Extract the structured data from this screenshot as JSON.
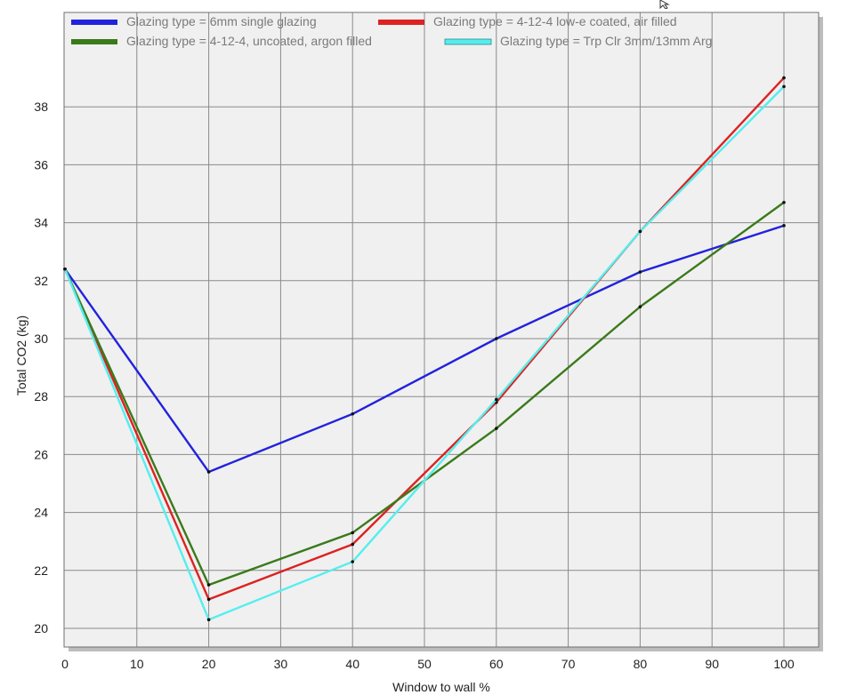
{
  "chart_data": {
    "type": "line",
    "title": "",
    "xlabel": "Window to wall %",
    "ylabel": "Total CO2 (kg)",
    "xlim": [
      0,
      100
    ],
    "ylim": [
      19.5,
      40
    ],
    "xticks": [
      0,
      10,
      20,
      30,
      40,
      50,
      60,
      70,
      80,
      90,
      100
    ],
    "yticks": [
      20,
      22,
      24,
      26,
      28,
      30,
      32,
      34,
      36,
      38
    ],
    "grid": true,
    "legend_position": "top",
    "x": [
      0,
      20,
      40,
      60,
      80,
      100
    ],
    "series": [
      {
        "name": "Glazing type = 6mm single glazing",
        "color": "#2222dd",
        "values": [
          32.4,
          25.4,
          27.4,
          30.0,
          32.3,
          33.9
        ]
      },
      {
        "name": "Glazing type = 4-12-4 low-e coated, air filled",
        "color": "#dd2222",
        "values": [
          32.4,
          21.0,
          22.9,
          27.8,
          33.7,
          39.0
        ]
      },
      {
        "name": "Glazing type = 4-12-4, uncoated, argon filled",
        "color": "#3a7a1a",
        "values": [
          32.4,
          21.5,
          23.3,
          26.9,
          31.1,
          34.7
        ]
      },
      {
        "name": "Glazing type = Trp Clr 3mm/13mm Arg",
        "color": "#55eeee",
        "values": [
          32.4,
          20.3,
          22.3,
          27.9,
          33.7,
          38.7
        ]
      }
    ]
  },
  "icons": {
    "cursor": "mouse-pointer-icon"
  },
  "colors": {
    "plot_background": "#f0f0f0",
    "grid": "#8a8a8a",
    "frame": "#707070",
    "shadow": "#bdbdbd"
  }
}
